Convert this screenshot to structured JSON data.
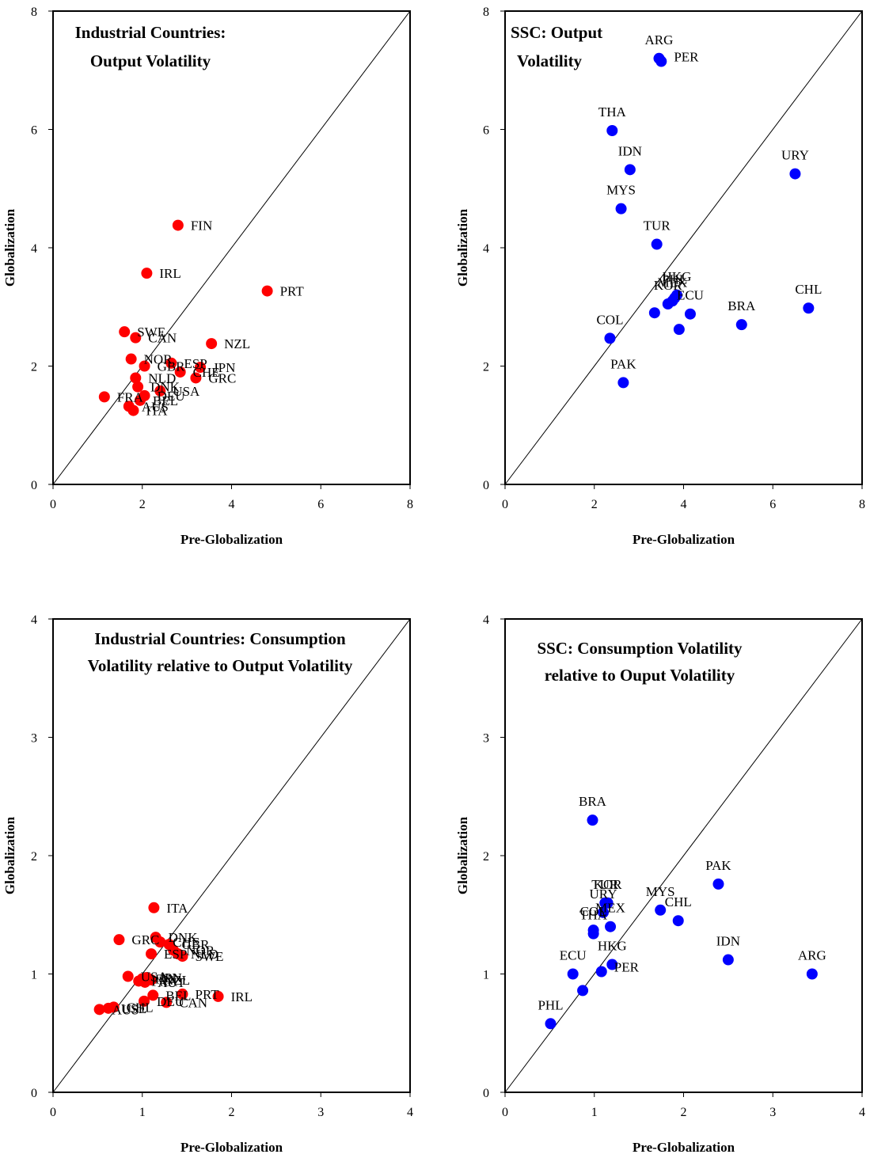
{
  "colors": {
    "industrial": "#ff0000",
    "ssc": "#0000ff",
    "axis": "#000000"
  },
  "chart_data": [
    {
      "type": "scatter",
      "title": [
        "Industrial Countries:",
        "Output Volatility"
      ],
      "xlabel": "Pre-Globalization",
      "ylabel": "Globalization",
      "xlim": [
        0,
        8
      ],
      "ylim": [
        0,
        8
      ],
      "ticks": [
        "0",
        "2",
        "4",
        "6",
        "8"
      ],
      "diagonal": true,
      "color": "industrial",
      "points": [
        {
          "label": "FIN",
          "x": 2.8,
          "y": 4.38
        },
        {
          "label": "IRL",
          "x": 2.1,
          "y": 3.57
        },
        {
          "label": "PRT",
          "x": 4.8,
          "y": 3.27
        },
        {
          "label": "SWE",
          "x": 1.6,
          "y": 2.58
        },
        {
          "label": "CAN",
          "x": 1.85,
          "y": 2.48
        },
        {
          "label": "NZL",
          "x": 3.55,
          "y": 2.38
        },
        {
          "label": "NOR",
          "x": 1.75,
          "y": 2.12
        },
        {
          "label": "GBR",
          "x": 2.05,
          "y": 2.0
        },
        {
          "label": "ESP",
          "x": 2.65,
          "y": 2.05
        },
        {
          "label": "JPN",
          "x": 3.3,
          "y": 1.98
        },
        {
          "label": "CHE",
          "x": 2.85,
          "y": 1.9
        },
        {
          "label": "GRC",
          "x": 3.2,
          "y": 1.8
        },
        {
          "label": "NLD",
          "x": 1.85,
          "y": 1.8
        },
        {
          "label": "DNK",
          "x": 1.9,
          "y": 1.65
        },
        {
          "label": "USA",
          "x": 2.4,
          "y": 1.58
        },
        {
          "label": "FRA",
          "x": 1.15,
          "y": 1.48
        },
        {
          "label": "DEU",
          "x": 2.05,
          "y": 1.5
        },
        {
          "label": "AUS",
          "x": 1.7,
          "y": 1.32
        },
        {
          "label": "BEL",
          "x": 1.95,
          "y": 1.42
        },
        {
          "label": "ITA",
          "x": 1.8,
          "y": 1.25
        }
      ]
    },
    {
      "type": "scatter",
      "title": [
        "SSC: Output",
        "Volatility"
      ],
      "xlabel": "Pre-Globalization",
      "ylabel": "Globalization",
      "xlim": [
        0,
        8
      ],
      "ylim": [
        0,
        8
      ],
      "ticks": [
        "0",
        "2",
        "4",
        "6",
        "8"
      ],
      "diagonal": true,
      "color": "ssc",
      "points": [
        {
          "label": "ARG",
          "x": 3.45,
          "y": 7.2
        },
        {
          "label": "PER",
          "x": 3.5,
          "y": 7.15
        },
        {
          "label": "THA",
          "x": 2.4,
          "y": 5.98
        },
        {
          "label": "IDN",
          "x": 2.8,
          "y": 5.32
        },
        {
          "label": "URY",
          "x": 6.5,
          "y": 5.25
        },
        {
          "label": "MYS",
          "x": 2.6,
          "y": 4.66
        },
        {
          "label": "TUR",
          "x": 3.4,
          "y": 4.06
        },
        {
          "label": "HKG",
          "x": 3.85,
          "y": 3.2
        },
        {
          "label": "PHL",
          "x": 3.8,
          "y": 3.15
        },
        {
          "label": "MEX",
          "x": 3.75,
          "y": 3.1
        },
        {
          "label": "KOR",
          "x": 3.65,
          "y": 3.05
        },
        {
          "label": "ECU",
          "x": 4.15,
          "y": 2.88
        },
        {
          "label": "CHL",
          "x": 6.8,
          "y": 2.98
        },
        {
          "label": "BRA",
          "x": 5.3,
          "y": 2.7
        },
        {
          "label": "COL",
          "x": 2.35,
          "y": 2.47
        },
        {
          "label": "PAK",
          "x": 2.65,
          "y": 1.72
        }
      ],
      "extra_points": [
        {
          "x": 3.35,
          "y": 2.9
        },
        {
          "x": 3.9,
          "y": 2.62
        }
      ]
    },
    {
      "type": "scatter",
      "title": [
        "Industrial Countries: Consumption",
        "Volatility relative to Output Volatility"
      ],
      "xlabel": "Pre-Globalization",
      "ylabel": "Globalization",
      "xlim": [
        0,
        4
      ],
      "ylim": [
        0,
        4
      ],
      "ticks": [
        "0",
        "1",
        "2",
        "3",
        "4"
      ],
      "diagonal": true,
      "color": "industrial",
      "points": [
        {
          "label": "ITA",
          "x": 1.13,
          "y": 1.56
        },
        {
          "label": "GRC",
          "x": 0.74,
          "y": 1.29
        },
        {
          "label": "DNK",
          "x": 1.15,
          "y": 1.31
        },
        {
          "label": "CHE",
          "x": 1.2,
          "y": 1.27
        },
        {
          "label": "GBR",
          "x": 1.3,
          "y": 1.25
        },
        {
          "label": "ESP",
          "x": 1.1,
          "y": 1.17
        },
        {
          "label": "NOR",
          "x": 1.35,
          "y": 1.2
        },
        {
          "label": "NLD",
          "x": 1.4,
          "y": 1.17
        },
        {
          "label": "SWE",
          "x": 1.45,
          "y": 1.15
        },
        {
          "label": "USA",
          "x": 0.84,
          "y": 0.98
        },
        {
          "label": "FIN",
          "x": 1.0,
          "y": 0.96
        },
        {
          "label": "FRA",
          "x": 0.96,
          "y": 0.94
        },
        {
          "label": "JPN",
          "x": 1.05,
          "y": 0.97
        },
        {
          "label": "NZL",
          "x": 1.1,
          "y": 0.95
        },
        {
          "label": "AUT",
          "x": 1.03,
          "y": 0.93
        },
        {
          "label": "BEL",
          "x": 1.12,
          "y": 0.82
        },
        {
          "label": "PRT",
          "x": 1.45,
          "y": 0.83
        },
        {
          "label": "IRL",
          "x": 1.85,
          "y": 0.81
        },
        {
          "label": "DEU",
          "x": 1.02,
          "y": 0.77
        },
        {
          "label": "CAN",
          "x": 1.27,
          "y": 0.76
        },
        {
          "label": "AUS",
          "x": 0.52,
          "y": 0.7
        },
        {
          "label": "USE",
          "x": 0.62,
          "y": 0.71
        },
        {
          "label": "CHL",
          "x": 0.68,
          "y": 0.72
        }
      ]
    },
    {
      "type": "scatter",
      "title": [
        "SSC: Consumption Volatility",
        "relative to Ouput Volatility"
      ],
      "xlabel": "Pre-Globalization",
      "ylabel": "Globalization",
      "xlim": [
        0,
        4
      ],
      "ylim": [
        0,
        4
      ],
      "ticks": [
        "0",
        "1",
        "2",
        "3",
        "4"
      ],
      "diagonal": true,
      "color": "ssc",
      "points": [
        {
          "label": "BRA",
          "x": 0.98,
          "y": 2.3
        },
        {
          "label": "PAK",
          "x": 2.39,
          "y": 1.76
        },
        {
          "label": "TUR",
          "x": 1.12,
          "y": 1.6
        },
        {
          "label": "MYS",
          "x": 1.74,
          "y": 1.54
        },
        {
          "label": "KOR",
          "x": 1.15,
          "y": 1.6
        },
        {
          "label": "URY",
          "x": 1.1,
          "y": 1.52
        },
        {
          "label": "CHL",
          "x": 1.94,
          "y": 1.45
        },
        {
          "label": "COL",
          "x": 0.99,
          "y": 1.37
        },
        {
          "label": "MEX",
          "x": 1.18,
          "y": 1.4
        },
        {
          "label": "IDN",
          "x": 2.5,
          "y": 1.12
        },
        {
          "label": "ARG",
          "x": 3.44,
          "y": 1.0
        },
        {
          "label": "THA",
          "x": 0.99,
          "y": 1.34
        },
        {
          "label": "HKG",
          "x": 1.2,
          "y": 1.08
        },
        {
          "label": "ECU",
          "x": 0.76,
          "y": 1.0
        },
        {
          "label": "PER",
          "x": 1.08,
          "y": 1.02
        },
        {
          "label": "PHL",
          "x": 0.51,
          "y": 0.58
        }
      ],
      "extra_points": [
        {
          "x": 0.87,
          "y": 0.86
        }
      ]
    }
  ]
}
